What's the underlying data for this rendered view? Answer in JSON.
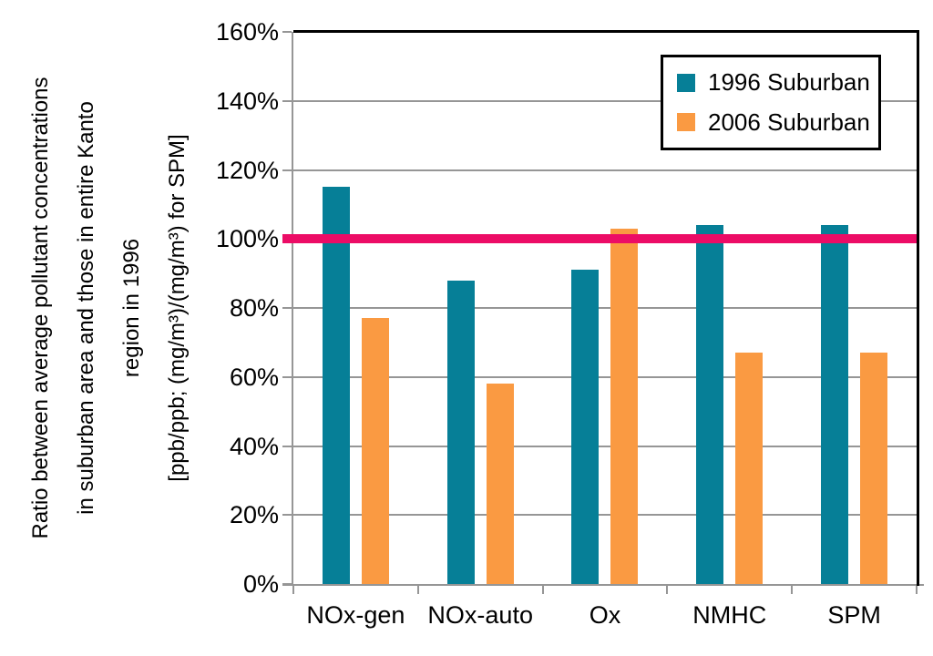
{
  "chart_data": {
    "type": "bar",
    "title": "",
    "categories": [
      "NOx-gen",
      "NOx-auto",
      "Ox",
      "NMHC",
      "SPM"
    ],
    "series": [
      {
        "name": "1996 Suburban",
        "color": "#067F97",
        "values": [
          115,
          88,
          91,
          104,
          104
        ]
      },
      {
        "name": "2006 Suburban",
        "color": "#FA9A42",
        "values": [
          77,
          58,
          103,
          67,
          67
        ]
      }
    ],
    "values_unit": "percent",
    "ylim": [
      0,
      160
    ],
    "ytick_values": [
      0,
      20,
      40,
      60,
      80,
      100,
      120,
      140,
      160
    ],
    "ytick_labels": [
      "0%",
      "20%",
      "40%",
      "60%",
      "80%",
      "100%",
      "120%",
      "140%",
      "160%"
    ],
    "ylabel_lines": [
      "Ratio between average pollutant concentrations",
      "in suburban area and those in entire Kanto",
      "region in 1996",
      "[ppb/ppb; (mg/m³)/(mg/m³) for SPM]"
    ],
    "xlabel": "",
    "reference_line": {
      "value": 100,
      "color": "#EC0C66"
    },
    "legend_position": "top-right",
    "grid": true,
    "styles": {
      "grid_color": "#969696",
      "axis_color": "#969696",
      "frame_color": "#000000",
      "background": "#FFFFFF",
      "text_color": "#000000"
    }
  }
}
